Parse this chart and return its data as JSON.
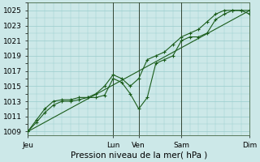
{
  "bg_color": "#cce8e8",
  "grid_color": "#99cccc",
  "line_color": "#1a5c1a",
  "title": "Pression niveau de la mer( hPa )",
  "ylim": [
    1008.5,
    1026.0
  ],
  "yticks": [
    1009,
    1011,
    1013,
    1015,
    1017,
    1019,
    1021,
    1023,
    1025
  ],
  "ylabel_fontsize": 6.5,
  "xlabel_fontsize": 7.5,
  "xtick_labels": [
    "Jeu",
    "Lun",
    "Ven",
    "Sam",
    "Dim"
  ],
  "xtick_positions": [
    0,
    60,
    78,
    108,
    156
  ],
  "vline_positions": [
    0,
    60,
    78,
    108,
    156
  ],
  "xlim": [
    0,
    156
  ],
  "series1_x": [
    0,
    6,
    12,
    18,
    24,
    30,
    36,
    42,
    48,
    54,
    60,
    66,
    72,
    78,
    84,
    90,
    96,
    102,
    108,
    114,
    120,
    126,
    132,
    138,
    144,
    150,
    156
  ],
  "series1_y": [
    1009.0,
    1010.2,
    1011.5,
    1012.5,
    1013.0,
    1013.0,
    1013.2,
    1013.5,
    1013.5,
    1013.8,
    1016.0,
    1015.5,
    1014.0,
    1012.0,
    1013.5,
    1018.0,
    1018.5,
    1019.0,
    1021.0,
    1021.5,
    1021.5,
    1022.0,
    1023.8,
    1024.5,
    1025.0,
    1025.0,
    1025.0
  ],
  "series2_x": [
    0,
    6,
    12,
    18,
    24,
    30,
    36,
    42,
    48,
    54,
    60,
    66,
    72,
    78,
    84,
    90,
    96,
    102,
    108,
    114,
    120,
    126,
    132,
    138,
    144,
    150,
    156
  ],
  "series2_y": [
    1009.0,
    1010.5,
    1012.0,
    1013.0,
    1013.2,
    1013.2,
    1013.5,
    1013.5,
    1014.0,
    1015.0,
    1016.5,
    1016.0,
    1015.0,
    1016.0,
    1018.5,
    1019.0,
    1019.5,
    1020.5,
    1021.5,
    1022.0,
    1022.5,
    1023.5,
    1024.5,
    1025.0,
    1025.0,
    1025.0,
    1024.5
  ],
  "trend_x": [
    0,
    156
  ],
  "trend_y": [
    1009.0,
    1025.0
  ]
}
